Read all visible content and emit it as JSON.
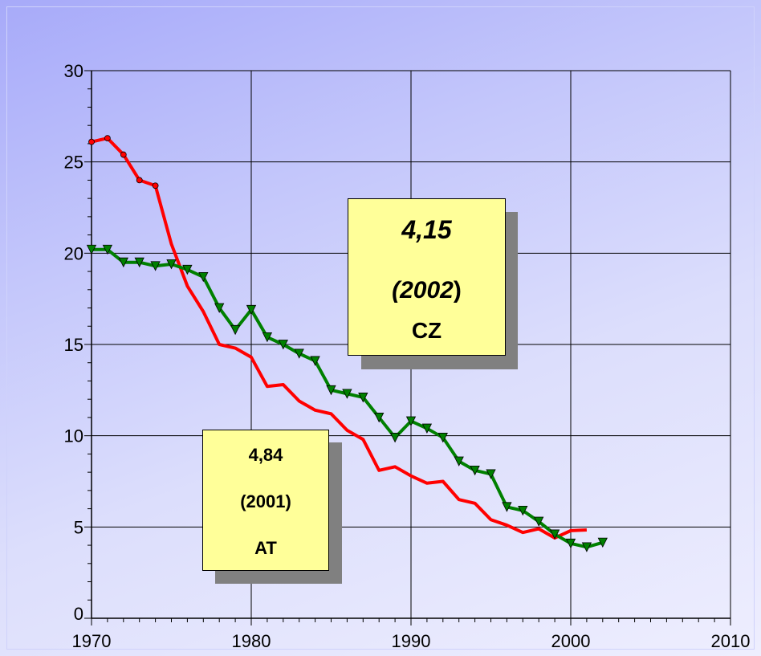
{
  "chart_data": {
    "type": "line",
    "xlim": [
      1970,
      2010
    ],
    "ylim": [
      0,
      30
    ],
    "x_ticks": [
      1970,
      1980,
      1990,
      2000,
      2010
    ],
    "y_ticks": [
      0,
      5,
      10,
      15,
      20,
      25,
      30
    ],
    "grid": true,
    "series": [
      {
        "color": "#ff0000",
        "marker": "circle",
        "points": [
          [
            1970,
            26.1
          ],
          [
            1971,
            26.3
          ],
          [
            1972,
            25.4
          ],
          [
            1973,
            24.0
          ],
          [
            1974,
            23.7
          ],
          [
            1975,
            20.5
          ],
          [
            1976,
            18.2
          ],
          [
            1977,
            16.8
          ],
          [
            1978,
            15.0
          ],
          [
            1979,
            14.8
          ],
          [
            1980,
            14.3
          ],
          [
            1981,
            12.7
          ],
          [
            1982,
            12.8
          ],
          [
            1983,
            11.9
          ],
          [
            1984,
            11.4
          ],
          [
            1985,
            11.2
          ],
          [
            1986,
            10.3
          ],
          [
            1987,
            9.8
          ],
          [
            1988,
            8.1
          ],
          [
            1989,
            8.3
          ],
          [
            1990,
            7.8
          ],
          [
            1991,
            7.4
          ],
          [
            1992,
            7.5
          ],
          [
            1993,
            6.5
          ],
          [
            1994,
            6.3
          ],
          [
            1995,
            5.4
          ],
          [
            1996,
            5.1
          ],
          [
            1997,
            4.7
          ],
          [
            1998,
            4.9
          ],
          [
            1999,
            4.4
          ],
          [
            2000,
            4.8
          ],
          [
            2001,
            4.84
          ]
        ]
      },
      {
        "color": "#008000",
        "marker": "triangle-down",
        "points": [
          [
            1970,
            20.2
          ],
          [
            1971,
            20.2
          ],
          [
            1972,
            19.5
          ],
          [
            1973,
            19.5
          ],
          [
            1974,
            19.3
          ],
          [
            1975,
            19.4
          ],
          [
            1976,
            19.1
          ],
          [
            1977,
            18.7
          ],
          [
            1978,
            17.0
          ],
          [
            1979,
            15.8
          ],
          [
            1980,
            16.9
          ],
          [
            1981,
            15.4
          ],
          [
            1982,
            15.0
          ],
          [
            1983,
            14.5
          ],
          [
            1984,
            14.1
          ],
          [
            1985,
            12.5
          ],
          [
            1986,
            12.3
          ],
          [
            1987,
            12.1
          ],
          [
            1988,
            11.0
          ],
          [
            1989,
            9.9
          ],
          [
            1990,
            10.8
          ],
          [
            1991,
            10.4
          ],
          [
            1992,
            9.9
          ],
          [
            1993,
            8.6
          ],
          [
            1994,
            8.1
          ],
          [
            1995,
            7.9
          ],
          [
            1996,
            6.1
          ],
          [
            1997,
            5.9
          ],
          [
            1998,
            5.3
          ],
          [
            1999,
            4.6
          ],
          [
            2000,
            4.1
          ],
          [
            2001,
            3.9
          ],
          [
            2002,
            4.15
          ]
        ]
      }
    ],
    "annotations": [
      {
        "id": "cz",
        "value": "4,15",
        "year": "(2002",
        "year_close": ")",
        "country": "CZ"
      },
      {
        "id": "at",
        "value": "4,84",
        "year": "(2001)",
        "country": "AT"
      }
    ]
  }
}
